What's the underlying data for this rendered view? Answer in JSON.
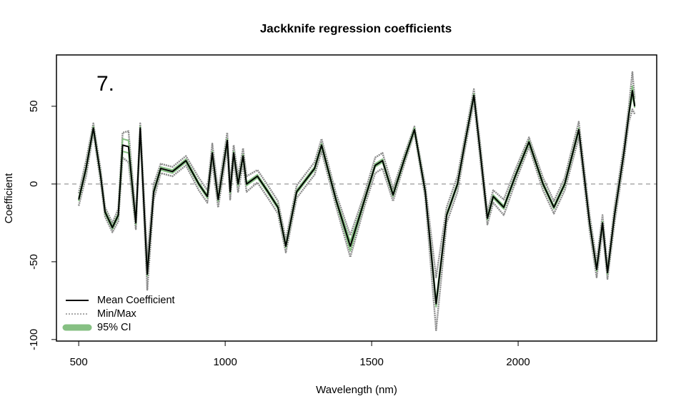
{
  "chart_data": {
    "type": "line",
    "title": "Jackknife regression coefficients",
    "x_label": "Wavelength (nm)",
    "y_label": "Coefficient",
    "annotation": "7.",
    "x": [
      500,
      525,
      550,
      575,
      590,
      615,
      635,
      650,
      670,
      695,
      710,
      734,
      756,
      780,
      820,
      866,
      910,
      939,
      956,
      976,
      1007,
      1017,
      1029,
      1044,
      1061,
      1073,
      1110,
      1146,
      1180,
      1207,
      1244,
      1305,
      1329,
      1378,
      1427,
      1476,
      1512,
      1537,
      1573,
      1610,
      1646,
      1683,
      1720,
      1756,
      1793,
      1817,
      1849,
      1871,
      1895,
      1915,
      1951,
      1990,
      2037,
      2085,
      2122,
      2159,
      2207,
      2244,
      2268,
      2288,
      2305,
      2329,
      2361,
      2378,
      2390,
      2398
    ],
    "series": [
      {
        "name": "Mean Coefficient",
        "color": "#000000",
        "values": [
          -10,
          10,
          36,
          5,
          -18,
          -28,
          -20,
          25,
          24,
          -25,
          36,
          -58,
          -5,
          10,
          8,
          15,
          0,
          -8,
          20,
          -10,
          28,
          -5,
          20,
          0,
          18,
          0,
          5,
          -5,
          -15,
          -40,
          -5,
          10,
          25,
          -10,
          -40,
          -10,
          12,
          15,
          -7,
          15,
          35,
          -5,
          -77,
          -20,
          0,
          25,
          57,
          20,
          -22,
          -8,
          -15,
          5,
          27,
          0,
          -15,
          0,
          35,
          -25,
          -55,
          -25,
          -57,
          -20,
          20,
          45,
          60,
          50
        ]
      },
      {
        "name": "Min/Max",
        "color": "#8c8c8c",
        "lower": [
          -14,
          5,
          33,
          1,
          -21,
          -31,
          -24,
          17,
          14,
          -29,
          33,
          -68,
          -10,
          7,
          5,
          12,
          -4,
          -12,
          14,
          -15,
          23,
          -10,
          15,
          -5,
          13,
          -5,
          1,
          -9,
          -19,
          -44,
          -9,
          6,
          21,
          -14,
          -47,
          -14,
          7,
          10,
          -11,
          12,
          33,
          -9,
          -94,
          -25,
          -5,
          21,
          53,
          15,
          -26,
          -12,
          -20,
          1,
          24,
          -4,
          -19,
          -4,
          30,
          -30,
          -60,
          -30,
          -61,
          -25,
          15,
          40,
          48,
          45
        ],
        "upper": [
          -6,
          15,
          39,
          9,
          -15,
          -25,
          -16,
          33,
          34,
          -21,
          39,
          -48,
          0,
          13,
          11,
          18,
          4,
          -4,
          26,
          -5,
          33,
          0,
          25,
          5,
          23,
          5,
          9,
          -1,
          -11,
          -36,
          -1,
          14,
          29,
          -6,
          -33,
          -6,
          17,
          20,
          -3,
          18,
          37,
          -1,
          -60,
          -15,
          5,
          29,
          61,
          25,
          -18,
          -4,
          -10,
          9,
          30,
          4,
          -11,
          4,
          40,
          -20,
          -50,
          -20,
          -53,
          -15,
          25,
          50,
          72,
          55
        ]
      },
      {
        "name": "95% CI",
        "color": "#86c083",
        "lower": [
          -11,
          9,
          35,
          4,
          -19,
          -29,
          -21,
          21,
          20,
          -26,
          35,
          -59,
          -6,
          9,
          7,
          14,
          -1,
          -9,
          19,
          -11,
          27,
          -6,
          19,
          -1,
          17,
          -1,
          4,
          -6,
          -16,
          -41,
          -6,
          9,
          24,
          -11,
          -43,
          -11,
          11,
          14,
          -8,
          14,
          34,
          -6,
          -79,
          -21,
          -1,
          24,
          56,
          19,
          -23,
          -9,
          -16,
          4,
          26,
          -1,
          -16,
          -1,
          34,
          -26,
          -56,
          -26,
          -58,
          -21,
          19,
          44,
          57,
          49
        ],
        "upper": [
          -9,
          11,
          37,
          6,
          -17,
          -27,
          -19,
          29,
          28,
          -24,
          37,
          -57,
          -4,
          11,
          9,
          16,
          1,
          -7,
          21,
          -9,
          29,
          -4,
          21,
          1,
          19,
          1,
          6,
          -4,
          -14,
          -39,
          -4,
          11,
          26,
          -9,
          -37,
          -9,
          13,
          16,
          -6,
          16,
          36,
          -4,
          -75,
          -19,
          1,
          26,
          58,
          21,
          -21,
          -7,
          -14,
          6,
          28,
          1,
          -14,
          1,
          36,
          -24,
          -54,
          -24,
          -56,
          -19,
          21,
          46,
          63,
          51
        ]
      }
    ],
    "hline": 0,
    "xlim": [
      424,
      2473
    ],
    "ylim": [
      -101,
      83
    ],
    "xticks": [
      500,
      1000,
      1500,
      2000
    ],
    "yticks": [
      -100,
      -50,
      0,
      50
    ],
    "grid": false,
    "legend": "bottom-left"
  }
}
